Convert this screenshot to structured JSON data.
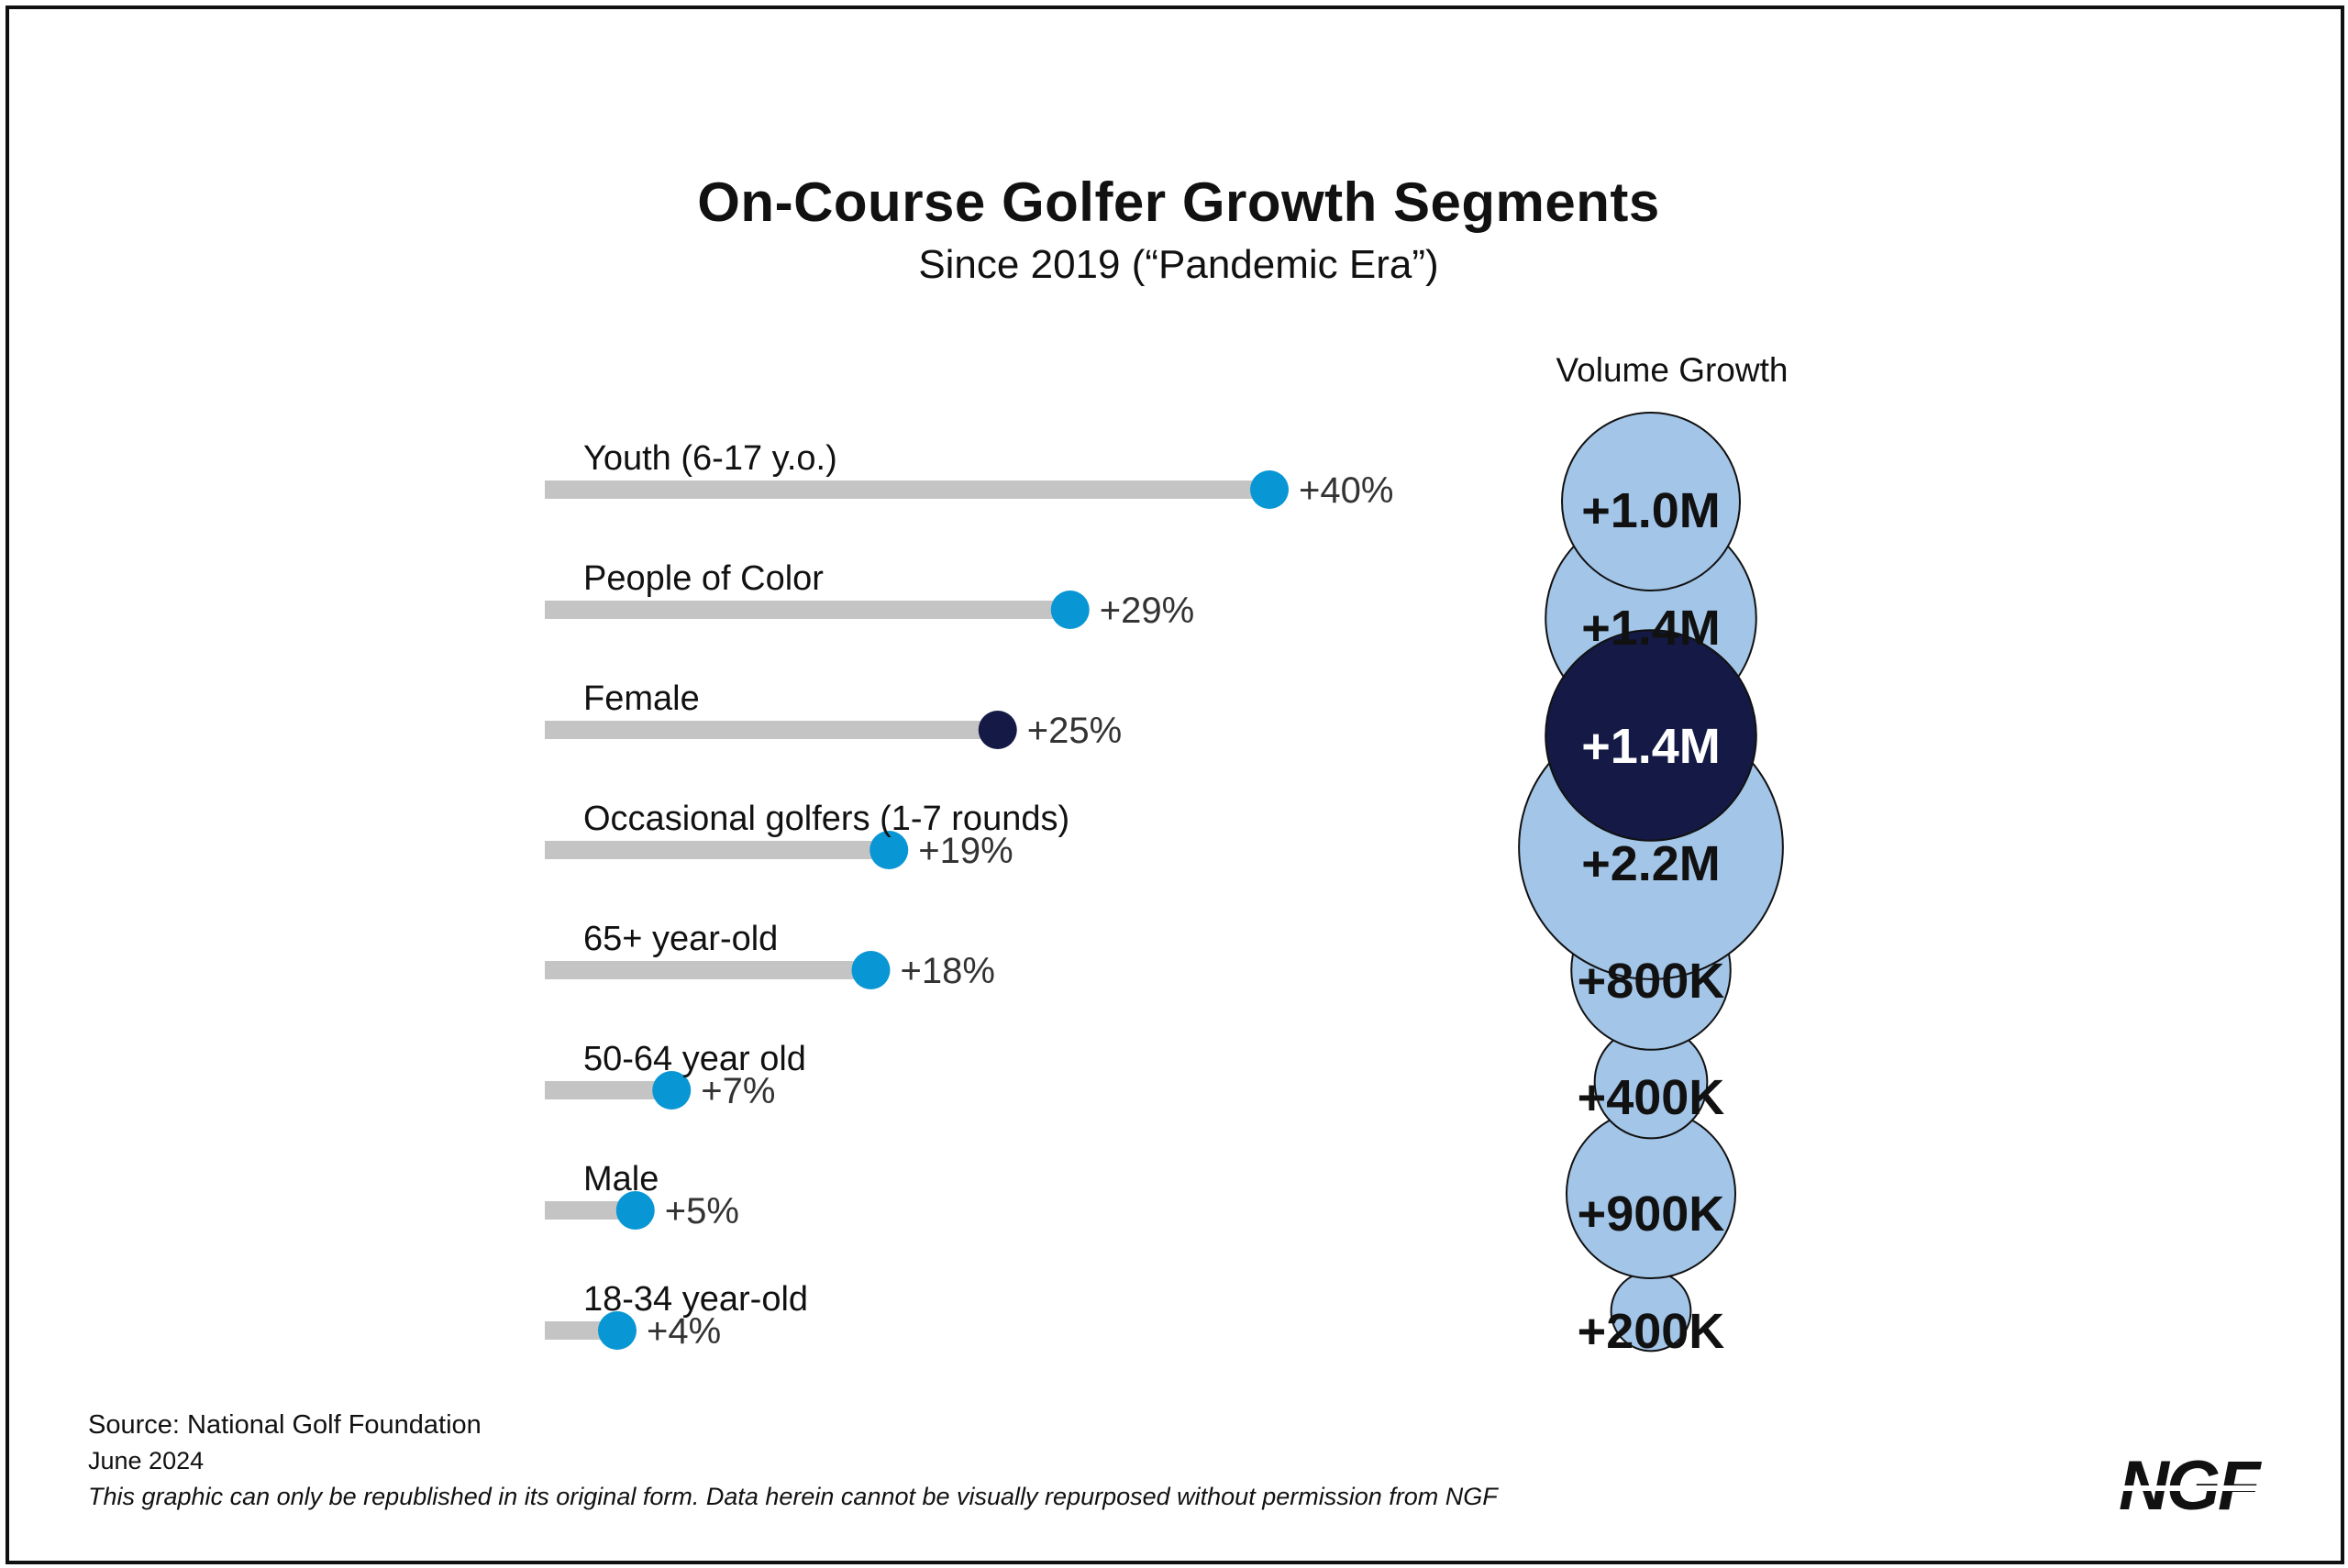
{
  "chart_data": {
    "type": "bar",
    "title": "On-Course Golfer Growth Segments",
    "subtitle": "Since 2019 (“Pandemic Era”)",
    "volume_header": "Volume Growth",
    "categories": [
      "Youth (6-17 y.o.)",
      "People of Color",
      "Female",
      "Occasional golfers (1-7 rounds)",
      "65+ year-old",
      "50-64 year old",
      "Male",
      "18-34 year-old"
    ],
    "values": [
      40,
      29,
      25,
      19,
      18,
      7,
      5,
      4
    ],
    "value_labels": [
      "+40%",
      "+29%",
      "+25%",
      "+19%",
      "+18%",
      "+7%",
      "+5%",
      "+4%"
    ],
    "volume_values_millions": [
      1.0,
      1.4,
      1.4,
      2.2,
      0.8,
      0.4,
      0.9,
      0.2
    ],
    "volume_labels": [
      "+1.0M",
      "+1.4M",
      "+1.4M",
      "+2.2M",
      "+800K",
      "+400K",
      "+900K",
      "+200K"
    ],
    "highlight_index": 2,
    "colors": {
      "track": "#c4c4c4",
      "dot": "#0896d4",
      "dot_highlight": "#141a45",
      "bubble": "#a3c5e8",
      "bubble_highlight": "#141a45",
      "text": "#111111",
      "label_value": "#333333"
    }
  },
  "footer": {
    "source": "Source: National Golf Foundation",
    "date": "June 2024",
    "disclaimer": "This graphic can only be republished in its original form. Data herein cannot be visually repurposed without permission from NGF"
  },
  "logo": {
    "text": "NGF",
    "icon": "ngf-logo"
  }
}
